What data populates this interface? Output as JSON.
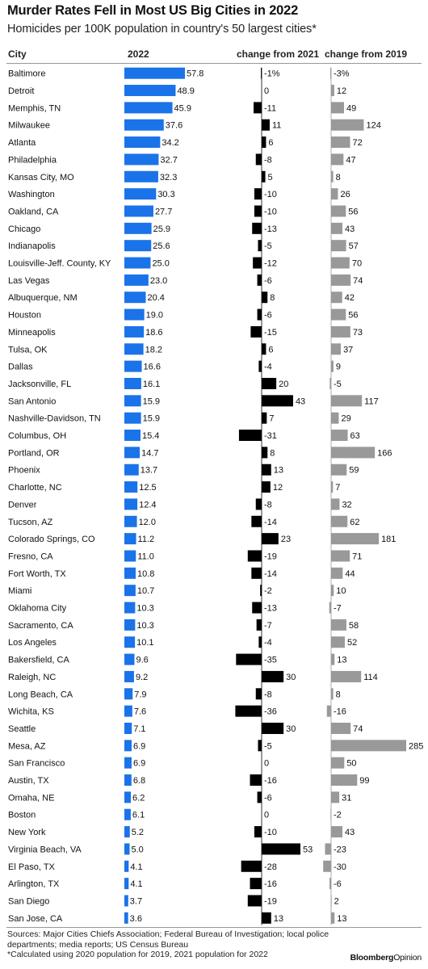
{
  "header": {
    "title": "Murder Rates Fell in Most US Big Cities in 2022",
    "subtitle": "Homicides per 100K population in country's 50 largest cities*"
  },
  "columns": {
    "city": "City",
    "y2022": "2022",
    "change2021": "change from 2021",
    "change2019": "change from 2019"
  },
  "footer": {
    "sources": "Sources: Major Cities Chiefs Association; Federal Bureau of Investigation; local police departments; media reports; US Census Bureau",
    "note": "*Calculated using 2020 population for 2019, 2021 population for 2022",
    "brand_bold": "Bloomberg",
    "brand_regular": "Opinion"
  },
  "colors": {
    "rate_bar": "#1a73e8",
    "change2021_bar": "#000000",
    "change2019_bar": "#999999"
  },
  "chart_data": {
    "type": "table",
    "categories": [
      "Baltimore",
      "Detroit",
      "Memphis, TN",
      "Milwaukee",
      "Atlanta",
      "Philadelphia",
      "Kansas City, MO",
      "Washington",
      "Oakland, CA",
      "Chicago",
      "Indianapolis",
      "Louisville-Jeff. County, KY",
      "Las Vegas",
      "Albuquerque, NM",
      "Houston",
      "Minneapolis",
      "Tulsa, OK",
      "Dallas",
      "Jacksonville, FL",
      "San Antonio",
      "Nashville-Davidson, TN",
      "Columbus, OH",
      "Portland, OR",
      "Phoenix",
      "Charlotte, NC",
      "Denver",
      "Tucson, AZ",
      "Colorado Springs, CO",
      "Fresno, CA",
      "Fort Worth, TX",
      "Miami",
      "Oklahoma City",
      "Sacramento, CA",
      "Los Angeles",
      "Bakersfield, CA",
      "Raleigh, NC",
      "Long Beach, CA",
      "Wichita, KS",
      "Seattle",
      "Mesa, AZ",
      "San Francisco",
      "Austin, TX",
      "Omaha, NE",
      "Boston",
      "New York",
      "Virginia Beach, VA",
      "El Paso, TX",
      "Arlington, TX",
      "San Diego",
      "San Jose, CA"
    ],
    "series": [
      {
        "name": "2022",
        "values": [
          57.8,
          48.9,
          45.9,
          37.6,
          34.2,
          32.7,
          32.3,
          30.3,
          27.7,
          25.9,
          25.6,
          25.0,
          23.0,
          20.4,
          19.0,
          18.6,
          18.2,
          16.6,
          16.1,
          15.9,
          15.9,
          15.4,
          14.7,
          13.7,
          12.5,
          12.4,
          12.0,
          11.2,
          11.0,
          10.8,
          10.7,
          10.3,
          10.3,
          10.1,
          9.6,
          9.2,
          7.9,
          7.6,
          7.1,
          6.9,
          6.9,
          6.8,
          6.2,
          6.1,
          5.2,
          5.0,
          4.1,
          4.1,
          3.7,
          3.6
        ]
      },
      {
        "name": "change from 2021",
        "values": [
          -1,
          0,
          -11,
          11,
          6,
          -8,
          5,
          -10,
          -10,
          -13,
          -5,
          -12,
          -6,
          8,
          -6,
          -15,
          6,
          -4,
          20,
          43,
          7,
          -31,
          8,
          13,
          12,
          -8,
          -14,
          23,
          -19,
          -14,
          -2,
          -13,
          -7,
          -4,
          -35,
          30,
          -8,
          -36,
          30,
          -5,
          0,
          -16,
          -6,
          0,
          -10,
          53,
          -28,
          -16,
          -19,
          13
        ]
      },
      {
        "name": "change from 2019",
        "values": [
          -3,
          12,
          49,
          124,
          72,
          47,
          8,
          26,
          56,
          43,
          57,
          70,
          74,
          42,
          56,
          73,
          37,
          9,
          -5,
          117,
          29,
          63,
          166,
          59,
          7,
          32,
          62,
          181,
          71,
          44,
          10,
          -7,
          58,
          52,
          13,
          114,
          8,
          -16,
          74,
          285,
          50,
          99,
          31,
          -2,
          43,
          -23,
          -30,
          -6,
          2,
          13
        ]
      }
    ],
    "labels": {
      "y2022": [
        "57.8",
        "48.9",
        "45.9",
        "37.6",
        "34.2",
        "32.7",
        "32.3",
        "30.3",
        "27.7",
        "25.9",
        "25.6",
        "25.0",
        "23.0",
        "20.4",
        "19.0",
        "18.6",
        "18.2",
        "16.6",
        "16.1",
        "15.9",
        "15.9",
        "15.4",
        "14.7",
        "13.7",
        "12.5",
        "12.4",
        "12.0",
        "11.2",
        "11.0",
        "10.8",
        "10.7",
        "10.3",
        "10.3",
        "10.1",
        "9.6",
        "9.2",
        "7.9",
        "7.6",
        "7.1",
        "6.9",
        "6.9",
        "6.8",
        "6.2",
        "6.1",
        "5.2",
        "5.0",
        "4.1",
        "4.1",
        "3.7",
        "3.6"
      ],
      "change2021": [
        "-1%",
        "0",
        "-11",
        "11",
        "6",
        "-8",
        "5",
        "-10",
        "-10",
        "-13",
        "-5",
        "-12",
        "-6",
        "8",
        "-6",
        "-15",
        "6",
        "-4",
        "20",
        "43",
        "7",
        "-31",
        "8",
        "13",
        "12",
        "-8",
        "-14",
        "23",
        "-19",
        "-14",
        "-2",
        "-13",
        "-7",
        "-4",
        "-35",
        "30",
        "-8",
        "-36",
        "30",
        "-5",
        "0",
        "-16",
        "-6",
        "0",
        "-10",
        "53",
        "-28",
        "-16",
        "-19",
        "13"
      ],
      "change2019": [
        "-3%",
        "12",
        "49",
        "124",
        "72",
        "47",
        "8",
        "26",
        "56",
        "43",
        "57",
        "70",
        "74",
        "42",
        "56",
        "73",
        "37",
        "9",
        "-5",
        "117",
        "29",
        "63",
        "166",
        "59",
        "7",
        "32",
        "62",
        "181",
        "71",
        "44",
        "10",
        "-7",
        "58",
        "52",
        "13",
        "114",
        "8",
        "-16",
        "74",
        "285",
        "50",
        "99",
        "31",
        "-2",
        "43",
        "-23",
        "-30",
        "-6",
        "2",
        "13"
      ]
    }
  }
}
